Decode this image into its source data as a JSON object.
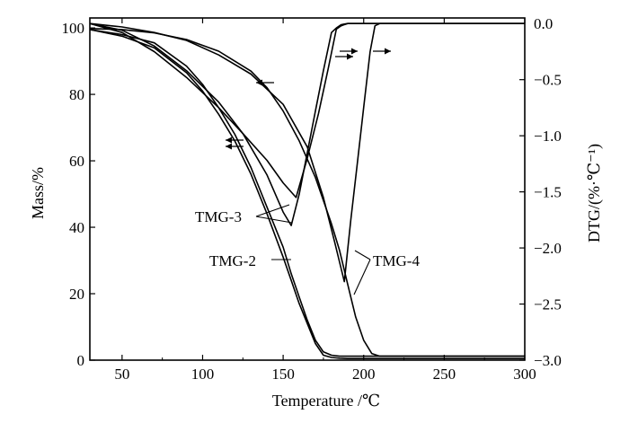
{
  "colors": {
    "line": "#000000",
    "background": "#ffffff"
  },
  "chart_data": {
    "type": "line",
    "xlabel": "Temperature /℃",
    "ylabel_left": "Mass/%",
    "ylabel_right": "DTG/(%·℃⁻¹)",
    "xlim": [
      30,
      300
    ],
    "ylim_left": [
      0,
      103
    ],
    "ylim_right": [
      -3.0,
      0.05
    ],
    "x_ticks": [
      50,
      100,
      150,
      200,
      250,
      300
    ],
    "y_left_ticks": [
      0,
      20,
      40,
      60,
      80,
      100
    ],
    "y_right_ticks": [
      -3.0,
      -2.5,
      -2.0,
      -1.5,
      -1.0,
      -0.5,
      0.0
    ],
    "y_right_tick_labels": [
      "−3.0",
      "−2.5",
      "−2.0",
      "−1.5",
      "−1.0",
      "−0.5",
      "0.0"
    ],
    "grid": false,
    "series": [
      {
        "name": "TMG-2",
        "kind": "mass",
        "axis": "left",
        "x": [
          30,
          50,
          70,
          90,
          100,
          110,
          120,
          130,
          140,
          150,
          155,
          160,
          165,
          170,
          175,
          180,
          185,
          190,
          200,
          250,
          300
        ],
        "y": [
          99.5,
          97.5,
          94,
          86.5,
          81,
          74,
          66,
          56,
          44,
          31,
          24,
          17,
          11,
          5,
          1.5,
          0.8,
          0.6,
          0.5,
          0.5,
          0.5,
          0.5
        ]
      },
      {
        "name": "TMG-3",
        "kind": "mass",
        "axis": "left",
        "x": [
          30,
          50,
          70,
          90,
          100,
          110,
          120,
          130,
          140,
          150,
          155,
          160,
          165,
          170,
          175,
          180,
          185,
          190,
          200,
          250,
          300
        ],
        "y": [
          99.5,
          98,
          95.5,
          88.5,
          83,
          76,
          68,
          58,
          46,
          34,
          26,
          19,
          12,
          6,
          2.5,
          1.5,
          1.2,
          1.2,
          1.2,
          1.2,
          1.2
        ]
      },
      {
        "name": "TMG-4",
        "kind": "mass",
        "axis": "left",
        "x": [
          30,
          50,
          70,
          90,
          110,
          130,
          140,
          150,
          160,
          170,
          180,
          185,
          190,
          195,
          200,
          205,
          210,
          250,
          300
        ],
        "y": [
          99.8,
          99.5,
          98.5,
          96.5,
          93,
          87,
          82,
          75,
          66,
          55,
          41,
          33,
          23,
          13,
          6,
          2,
          1.2,
          1.2,
          1.2
        ]
      },
      {
        "name": "TMG-2",
        "kind": "dtg",
        "axis": "right",
        "x": [
          30,
          50,
          70,
          90,
          110,
          125,
          140,
          150,
          155,
          160,
          165,
          170,
          175,
          180,
          183,
          186,
          190,
          200,
          250,
          300
        ],
        "y": [
          0.0,
          -0.08,
          -0.25,
          -0.48,
          -0.75,
          -0.98,
          -1.35,
          -1.68,
          -1.8,
          -1.52,
          -1.15,
          -0.78,
          -0.42,
          -0.08,
          -0.04,
          -0.01,
          0.0,
          0.0,
          0.0,
          0.0
        ]
      },
      {
        "name": "TMG-3",
        "kind": "dtg",
        "axis": "right",
        "x": [
          30,
          50,
          70,
          90,
          110,
          125,
          140,
          150,
          158,
          165,
          172,
          178,
          183,
          186,
          190,
          200,
          250,
          300
        ],
        "y": [
          0.0,
          -0.06,
          -0.2,
          -0.42,
          -0.7,
          -0.98,
          -1.22,
          -1.42,
          -1.55,
          -1.2,
          -0.8,
          -0.4,
          -0.05,
          -0.02,
          0.0,
          0.0,
          0.0,
          0.0
        ]
      },
      {
        "name": "TMG-4",
        "kind": "dtg",
        "axis": "right",
        "x": [
          30,
          50,
          70,
          90,
          110,
          130,
          150,
          165,
          175,
          182,
          188,
          192,
          196,
          200,
          204,
          207,
          210,
          250,
          300
        ],
        "y": [
          0.0,
          -0.03,
          -0.08,
          -0.15,
          -0.28,
          -0.45,
          -0.72,
          -1.1,
          -1.55,
          -1.95,
          -2.3,
          -1.75,
          -1.25,
          -0.75,
          -0.25,
          -0.02,
          0.0,
          0.0,
          0.0
        ]
      }
    ],
    "annotations": [
      {
        "text": "TMG-3",
        "x": 120,
        "y_left": 44
      },
      {
        "text": "TMG-2",
        "x": 128,
        "y_left": 30
      },
      {
        "text": "TMG-4",
        "x": 212,
        "y_left": 30
      }
    ]
  }
}
